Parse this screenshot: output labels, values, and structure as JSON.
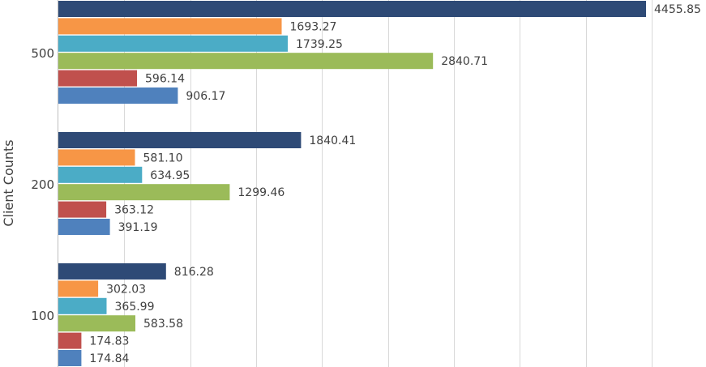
{
  "chart_data": {
    "type": "bar",
    "orientation": "horizontal",
    "ylabel": "Client Counts",
    "xlabel": "",
    "categories": [
      "500",
      "200",
      "100"
    ],
    "xlim": [
      0,
      4500
    ],
    "grid": true,
    "series": [
      {
        "color": "#2e4a76",
        "values": [
          4455.85,
          1840.41,
          816.28
        ]
      },
      {
        "color": "#f79646",
        "values": [
          1693.27,
          581.1,
          302.03
        ]
      },
      {
        "color": "#4bacc6",
        "values": [
          1739.25,
          634.95,
          365.99
        ]
      },
      {
        "color": "#9bbb59",
        "values": [
          2840.71,
          1299.46,
          583.58
        ]
      },
      {
        "color": "#c0504d",
        "values": [
          596.14,
          363.12,
          174.83
        ]
      },
      {
        "color": "#4f81bd",
        "values": [
          906.17,
          391.19,
          174.84
        ]
      }
    ],
    "value_labels": [
      [
        "4455.85",
        "1693.27",
        "1739.25",
        "2840.71",
        "596.14",
        "906.17"
      ],
      [
        "1840.41",
        "581.10",
        "634.95",
        "1299.46",
        "363.12",
        "391.19"
      ],
      [
        "816.28",
        "302.03",
        "365.99",
        "583.58",
        "174.83",
        "174.84"
      ]
    ]
  }
}
